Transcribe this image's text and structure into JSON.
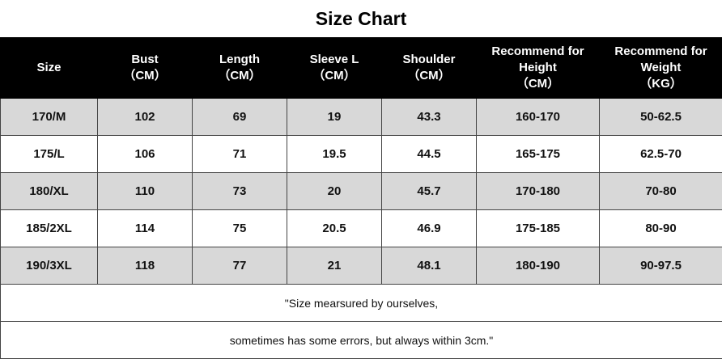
{
  "title": "Size Chart",
  "table": {
    "header": [
      [
        "Size"
      ],
      [
        "Bust",
        "（CM）"
      ],
      [
        "Length",
        "（CM）"
      ],
      [
        "Sleeve L",
        "（CM）"
      ],
      [
        "Shoulder",
        "（CM）"
      ],
      [
        "Recommend for",
        "Height",
        "（CM）"
      ],
      [
        "Recommend for",
        "Weight",
        "（KG）"
      ]
    ],
    "rows": [
      [
        "170/M",
        "102",
        "69",
        "19",
        "43.3",
        "160-170",
        "50-62.5"
      ],
      [
        "175/L",
        "106",
        "71",
        "19.5",
        "44.5",
        "165-175",
        "62.5-70"
      ],
      [
        "180/XL",
        "110",
        "73",
        "20",
        "45.7",
        "170-180",
        "70-80"
      ],
      [
        "185/2XL",
        "114",
        "75",
        "20.5",
        "46.9",
        "175-185",
        "80-90"
      ],
      [
        "190/3XL",
        "118",
        "77",
        "21",
        "48.1",
        "180-190",
        "90-97.5"
      ]
    ],
    "notes": [
      "\"Size mearsured by ourselves,",
      "sometimes has some errors, but always within 3cm.\""
    ]
  }
}
